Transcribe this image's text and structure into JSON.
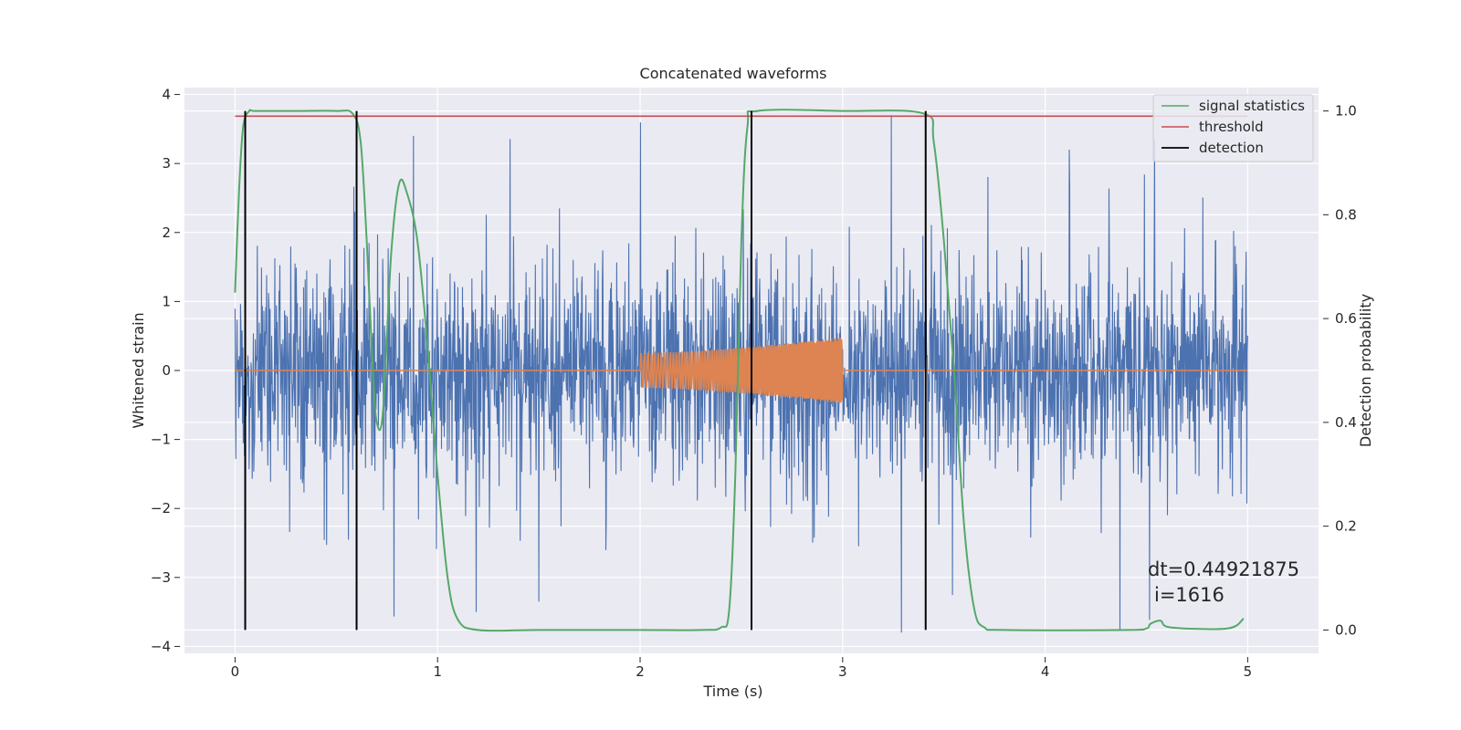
{
  "chart_data": {
    "type": "line",
    "title": "Concatenated waveforms",
    "xlabel": "Time (s)",
    "ylabel": "Whitened strain",
    "y2label": "Detection probability",
    "xlim": [
      -0.25,
      5.35
    ],
    "ylim": [
      -4.1,
      4.1
    ],
    "y2lim": [
      -0.045,
      1.045
    ],
    "x_ticks": [
      0,
      1,
      2,
      3,
      4,
      5
    ],
    "y_ticks": [
      -4,
      -3,
      -2,
      -1,
      0,
      1,
      2,
      3,
      4
    ],
    "y2_ticks": [
      0.0,
      0.2,
      0.4,
      0.6,
      0.8,
      1.0
    ],
    "y2_tick_labels": [
      "0.0",
      "0.2",
      "0.4",
      "0.6",
      "0.8",
      "1.0"
    ],
    "grid": true,
    "background": "#EAEAF2",
    "legend_position": "top-right",
    "series": [
      {
        "name": "",
        "axis": "left",
        "color": "#4C72B0",
        "kind": "noise",
        "x_range": [
          0,
          5
        ],
        "amplitude_std": 0.75,
        "peak_samples": [
          [
            0.05,
            -3.1
          ],
          [
            0.59,
            2.3
          ],
          [
            0.88,
            3.4
          ],
          [
            1.19,
            -3.5
          ],
          [
            1.5,
            -3.35
          ],
          [
            3.24,
            3.7
          ],
          [
            4.37,
            -3.75
          ],
          [
            4.12,
            3.2
          ],
          [
            4.54,
            3.35
          ]
        ]
      },
      {
        "name": "",
        "axis": "left",
        "color": "#DD8452",
        "kind": "chirp",
        "x_range": [
          0,
          5
        ],
        "chirp_start": 2.0,
        "chirp_end": 3.0,
        "amplitude_start": 0.25,
        "amplitude_end": 0.48
      },
      {
        "name": "signal statistics",
        "axis": "right",
        "color": "#55A868",
        "x": [
          0.0,
          0.02,
          0.04,
          0.07,
          0.1,
          0.3,
          0.5,
          0.58,
          0.62,
          0.65,
          0.68,
          0.7,
          0.73,
          0.77,
          0.81,
          0.85,
          0.9,
          0.95,
          1.0,
          1.05,
          1.1,
          1.2,
          1.5,
          2.0,
          2.3,
          2.4,
          2.44,
          2.47,
          2.5,
          2.53,
          2.58,
          3.0,
          3.4,
          3.45,
          3.5,
          3.55,
          3.6,
          3.65,
          3.7,
          3.8,
          4.4,
          4.5,
          4.52,
          4.57,
          4.62,
          4.9,
          4.98
        ],
        "y": [
          0.65,
          0.85,
          0.97,
          1.0,
          1.0,
          1.0,
          1.0,
          0.995,
          0.94,
          0.75,
          0.5,
          0.4,
          0.42,
          0.72,
          0.86,
          0.84,
          0.75,
          0.55,
          0.3,
          0.1,
          0.02,
          0.0,
          0.0,
          0.0,
          0.0,
          0.005,
          0.04,
          0.3,
          0.75,
          0.97,
          1.0,
          1.0,
          0.995,
          0.94,
          0.75,
          0.5,
          0.2,
          0.04,
          0.005,
          0.0,
          0.0,
          0.003,
          0.012,
          0.018,
          0.005,
          0.003,
          0.022
        ]
      },
      {
        "name": "threshold",
        "axis": "right",
        "color": "#C44E52",
        "x": [
          0,
          5
        ],
        "y": [
          0.99,
          0.99
        ]
      },
      {
        "name": "detection",
        "axis": "right",
        "color": "#000000",
        "segments": [
          [
            [
              0.05,
              0.0
            ],
            [
              0.05,
              1.0
            ]
          ],
          [
            [
              0.6,
              0.0
            ],
            [
              0.6,
              1.0
            ]
          ],
          [
            [
              2.55,
              0.0
            ],
            [
              2.55,
              1.0
            ]
          ],
          [
            [
              3.41,
              0.0
            ],
            [
              3.41,
              1.0
            ]
          ]
        ]
      }
    ],
    "annotation": {
      "line1": "dt=0.44921875",
      "line2": "i=1616"
    }
  }
}
